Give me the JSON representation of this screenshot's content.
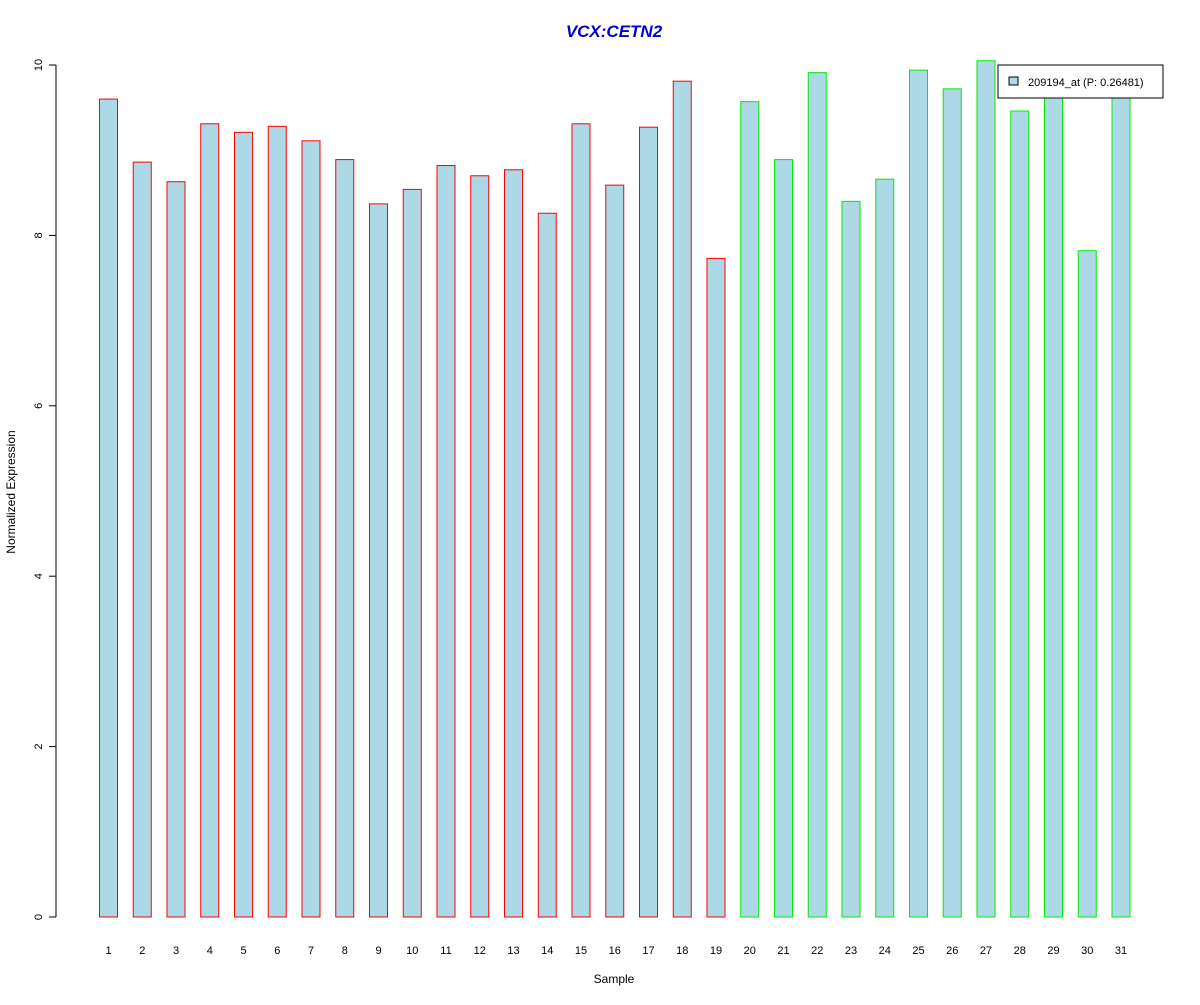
{
  "chart_data": {
    "type": "bar",
    "title": "VCX:CETN2",
    "xlabel": "Sample",
    "ylabel": "Normalized Expression",
    "ylim": [
      0,
      10
    ],
    "y_ticks": [
      "0",
      "2",
      "4",
      "6",
      "8",
      "10"
    ],
    "y_tick_values": [
      0,
      2,
      4,
      6,
      8,
      10
    ],
    "categories": [
      "1",
      "2",
      "3",
      "4",
      "5",
      "6",
      "7",
      "8",
      "9",
      "10",
      "11",
      "12",
      "13",
      "14",
      "15",
      "16",
      "17",
      "18",
      "19",
      "20",
      "21",
      "22",
      "23",
      "24",
      "25",
      "26",
      "27",
      "28",
      "29",
      "30",
      "31"
    ],
    "series": [
      {
        "name": "209194_at (P: 0.26481)",
        "fill": "#add8e6",
        "values": [
          9.6,
          8.86,
          8.63,
          9.31,
          9.21,
          9.28,
          9.11,
          8.89,
          8.37,
          8.54,
          8.82,
          8.7,
          8.77,
          8.26,
          9.31,
          8.59,
          9.27,
          9.81,
          7.73,
          9.57,
          8.89,
          9.91,
          8.4,
          8.66,
          9.94,
          9.72,
          10.05,
          9.46,
          9.68,
          7.82,
          9.68
        ]
      }
    ],
    "group_outline_colors": [
      "#ff0000",
      "#ff0000",
      "#ff0000",
      "#ff0000",
      "#ff0000",
      "#ff0000",
      "#ff0000",
      "#ff0000",
      "#ff0000",
      "#ff0000",
      "#ff0000",
      "#ff0000",
      "#ff0000",
      "#ff0000",
      "#ff0000",
      "#ff0000",
      "#ff0000",
      "#ff0000",
      "#ff0000",
      "#00ee00",
      "#00ee00",
      "#00ee00",
      "#00ee00",
      "#00ee00",
      "#00ee00",
      "#00ee00",
      "#00ee00",
      "#00ee00",
      "#00ee00",
      "#00ee00",
      "#00ee00"
    ],
    "legend": {
      "label": "209194_at (P: 0.26481)",
      "position": "top-right"
    },
    "grid": false,
    "colors": {
      "title": "#0000cc",
      "bar_fill": "#add8e6",
      "axis": "#000000",
      "background": "#ffffff"
    }
  }
}
